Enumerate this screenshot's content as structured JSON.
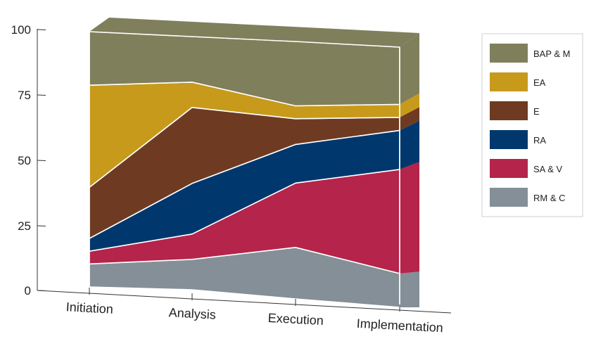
{
  "chart_data": {
    "type": "area",
    "stacked": true,
    "title": "",
    "xlabel": "",
    "ylabel": "",
    "ylim": [
      0,
      100
    ],
    "yticks": [
      "0",
      "25",
      "50",
      "75",
      "100"
    ],
    "categories": [
      "Initiation",
      "Analysis",
      "Execution",
      "Implementation"
    ],
    "series": [
      {
        "name": "RM & C",
        "color": "#848f97",
        "values": [
          9,
          12,
          20,
          13
        ]
      },
      {
        "name": "SA & V",
        "color": "#b5244a",
        "values": [
          5,
          10,
          25,
          40
        ]
      },
      {
        "name": "RA",
        "color": "#00386e",
        "values": [
          5,
          20,
          15,
          15
        ]
      },
      {
        "name": "E",
        "color": "#6e3b22",
        "values": [
          20,
          30,
          10,
          5
        ]
      },
      {
        "name": "EA",
        "color": "#c79a1c",
        "values": [
          40,
          10,
          5,
          5
        ]
      },
      {
        "name": "BAP & M",
        "color": "#7f7f5c",
        "values": [
          21,
          18,
          25,
          22
        ]
      }
    ],
    "legend_position": "right",
    "grid": false
  }
}
